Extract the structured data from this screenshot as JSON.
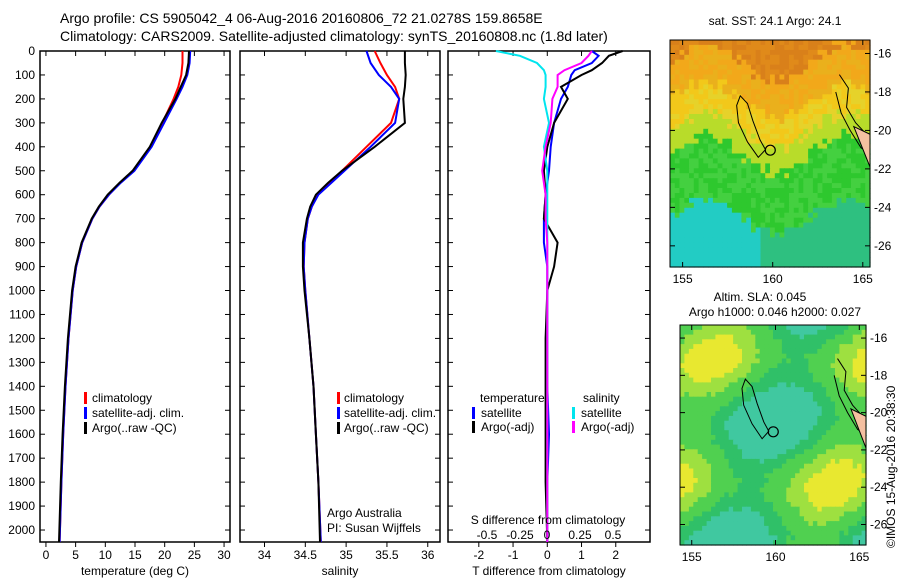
{
  "title_line1": "Argo profile: CS 5905042_4 06-Aug-2016 20160806_72 21.0278S 159.8658E",
  "title_line2": "Climatology: CARS2009. Satellite-adjusted climatology: synTS_20160808.nc (1.8d later)",
  "credit": "©IMOS 15-Aug-2016 20:38:30",
  "colors": {
    "climatology": "#ff0000",
    "satellite": "#0000ff",
    "argo": "#000000",
    "sal_satellite": "#00e5ee",
    "sal_argo": "#ff00ff"
  },
  "chart_data": [
    {
      "type": "line",
      "name": "temperature",
      "xlabel": "temperature (deg C)",
      "ylabel": "",
      "xlim": [
        -1,
        31
      ],
      "ylim": [
        2050,
        0
      ],
      "xticks": [
        0,
        5,
        10,
        15,
        20,
        25,
        30
      ],
      "yticks": [
        0,
        100,
        200,
        300,
        400,
        500,
        600,
        700,
        800,
        900,
        1000,
        1100,
        1200,
        1300,
        1400,
        1500,
        1600,
        1700,
        1800,
        1900,
        2000
      ],
      "legend": [
        "climatology",
        "satellite-adj. clim.",
        "Argo(..raw -QC)"
      ],
      "depth": [
        0,
        50,
        100,
        150,
        200,
        300,
        400,
        500,
        550,
        600,
        650,
        700,
        800,
        900,
        1000,
        1200,
        1400,
        1600,
        1800,
        2050
      ],
      "series": [
        {
          "name": "climatology",
          "values": [
            23.0,
            23.0,
            22.8,
            22.3,
            21.5,
            19.6,
            17.6,
            14.8,
            12.5,
            10.6,
            9.0,
            7.8,
            6.1,
            5.1,
            4.5,
            3.8,
            3.3,
            2.9,
            2.6,
            2.3
          ]
        },
        {
          "name": "satellite-adj. clim.",
          "values": [
            24.3,
            24.2,
            23.8,
            23.0,
            22.0,
            19.9,
            17.8,
            14.9,
            12.6,
            10.6,
            9.0,
            7.8,
            6.1,
            5.1,
            4.5,
            3.8,
            3.3,
            2.9,
            2.6,
            2.3
          ]
        },
        {
          "name": "Argo(..raw -QC)",
          "values": [
            24.1,
            24.0,
            23.6,
            22.7,
            21.8,
            19.5,
            17.5,
            14.6,
            12.4,
            10.4,
            8.9,
            7.7,
            6.0,
            5.0,
            4.4,
            3.7,
            3.2,
            2.8,
            2.5,
            2.2
          ]
        }
      ]
    },
    {
      "type": "line",
      "name": "salinity",
      "xlabel": "salinity",
      "xlim": [
        33.7,
        36.15
      ],
      "ylim": [
        2050,
        0
      ],
      "xticks": [
        34,
        34.5,
        35,
        35.5,
        36
      ],
      "legend": [
        "climatology",
        "satellite-adj. clim.",
        "Argo(..raw -QC)"
      ],
      "annotation": [
        "Argo Australia",
        "PI: Susan Wijffels"
      ],
      "depth": [
        0,
        50,
        100,
        150,
        200,
        300,
        400,
        500,
        550,
        600,
        650,
        700,
        800,
        900,
        1000,
        1200,
        1400,
        1600,
        1800,
        2050
      ],
      "series": [
        {
          "name": "climatology",
          "values": [
            35.35,
            35.42,
            35.5,
            35.6,
            35.65,
            35.55,
            35.25,
            34.95,
            34.8,
            34.65,
            34.58,
            34.53,
            34.49,
            34.48,
            34.5,
            34.55,
            34.6,
            34.63,
            34.66,
            34.69
          ]
        },
        {
          "name": "satellite-adj. clim.",
          "values": [
            35.25,
            35.3,
            35.4,
            35.55,
            35.65,
            35.6,
            35.3,
            34.98,
            34.82,
            34.66,
            34.58,
            34.53,
            34.49,
            34.48,
            34.5,
            34.55,
            34.6,
            34.63,
            34.66,
            34.69
          ]
        },
        {
          "name": "Argo(..raw -QC)",
          "values": [
            35.72,
            35.72,
            35.73,
            35.72,
            35.7,
            35.72,
            35.35,
            34.95,
            34.78,
            34.63,
            34.56,
            34.52,
            34.47,
            34.47,
            34.49,
            34.55,
            34.6,
            34.63,
            34.66,
            34.68
          ]
        }
      ]
    },
    {
      "type": "line",
      "name": "difference",
      "xlabel": "T difference from climatology",
      "x2label": "S difference from climatology",
      "xlim": [
        -2.9,
        3.0
      ],
      "ylim": [
        2050,
        0
      ],
      "xticks": [
        -2,
        -1,
        0,
        1,
        2
      ],
      "x2ticks": [
        "-0.5",
        "-0.25",
        "0",
        "0.25",
        "0.5"
      ],
      "legend_titles": [
        "temperature",
        "salinity"
      ],
      "legend": [
        "satellite",
        "Argo(-adj)",
        "satellite",
        "Argo(-adj)"
      ],
      "depth": [
        0,
        20,
        50,
        80,
        100,
        150,
        200,
        300,
        400,
        500,
        600,
        700,
        800,
        900,
        1000,
        1200,
        1400,
        1600,
        1800,
        2050
      ],
      "series": [
        {
          "name": "temperature satellite",
          "values": [
            1.3,
            1.5,
            1.3,
            0.8,
            0.7,
            0.6,
            0.4,
            0.2,
            0.1,
            0.05,
            -0.05,
            -0.1,
            -0.1,
            0,
            0,
            0,
            0,
            0.05,
            0,
            0
          ]
        },
        {
          "name": "temperature Argo(-adj)",
          "values": [
            2.2,
            1.8,
            1.6,
            1.3,
            1.0,
            0.4,
            0.6,
            0.2,
            0.0,
            -0.1,
            -0.05,
            -0.1,
            0.3,
            0.2,
            0,
            -0.05,
            -0.05,
            -0.05,
            -0.05,
            0
          ]
        },
        {
          "name": "salinity satellite",
          "values": [
            -1.5,
            -0.8,
            -0.3,
            -0.1,
            -0.05,
            -0.05,
            -0.1,
            0.05,
            -0.1,
            0,
            0,
            0,
            0,
            0,
            0,
            0,
            0,
            0,
            0,
            0
          ]
        },
        {
          "name": "salinity Argo(-adj)",
          "values": [
            1.3,
            1.2,
            1.0,
            0.5,
            0.3,
            0.3,
            0.15,
            0.1,
            -0.05,
            -0.15,
            -0.05,
            -0.05,
            0,
            0,
            0,
            0,
            0,
            0,
            0,
            0
          ]
        }
      ]
    },
    {
      "type": "heatmap",
      "name": "sst-map",
      "title": "sat. SST: 24.1  Argo: 24.1",
      "xticks": [
        155,
        160,
        165
      ],
      "yticks": [
        -16,
        -18,
        -20,
        -22,
        -24,
        -26
      ],
      "xlim": [
        154.3,
        165.4
      ],
      "ylim": [
        -27.1,
        -15.3
      ],
      "argo_position": [
        159.8658,
        -21.0278
      ]
    },
    {
      "type": "heatmap",
      "name": "sla-map",
      "title": [
        "Altim. SLA: 0.045",
        "Argo h1000: 0.046 h2000: 0.027"
      ],
      "xticks": [
        155,
        160,
        165
      ],
      "yticks": [
        -16,
        -18,
        -20,
        -22,
        -24,
        -26
      ],
      "xlim": [
        154.3,
        165.4
      ],
      "ylim": [
        -27.1,
        -15.3
      ],
      "argo_position": [
        159.8658,
        -21.0278
      ]
    }
  ]
}
